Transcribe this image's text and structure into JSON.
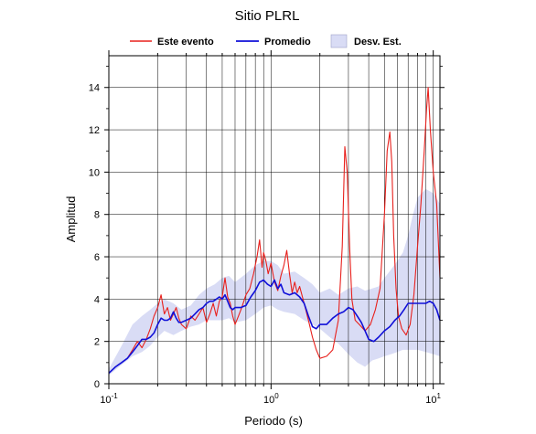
{
  "chart_data": {
    "type": "line",
    "title": "Sitio PLRL",
    "xlabel": "Periodo (s)",
    "ylabel": "Amplitud",
    "x_scale": "log",
    "xlim": [
      0.1,
      11
    ],
    "ylim": [
      0,
      15.5
    ],
    "grid": true,
    "legend_position": "top",
    "x_ticks": [
      {
        "value": 0.1,
        "base": "10",
        "exp": "-1"
      },
      {
        "value": 1,
        "base": "10",
        "exp": "0"
      },
      {
        "value": 10,
        "base": "10",
        "exp": "1"
      }
    ],
    "y_ticks": [
      0,
      2,
      4,
      6,
      8,
      10,
      12,
      14
    ],
    "legend": [
      {
        "label": "Este evento",
        "color": "#e8201c",
        "kind": "line"
      },
      {
        "label": "Promedio",
        "color": "#1010d8",
        "kind": "line"
      },
      {
        "label": "Desv. Est.",
        "color": "#d9dcf5",
        "kind": "band"
      }
    ],
    "band": {
      "name": "Desv. Est.",
      "color": "#d9dcf5",
      "x": [
        0.1,
        0.12,
        0.14,
        0.16,
        0.18,
        0.2,
        0.22,
        0.25,
        0.28,
        0.32,
        0.36,
        0.4,
        0.45,
        0.5,
        0.55,
        0.6,
        0.7,
        0.8,
        0.9,
        1.0,
        1.1,
        1.2,
        1.4,
        1.6,
        1.8,
        2.0,
        2.3,
        2.6,
        3.0,
        3.4,
        3.8,
        4.2,
        4.6,
        5.0,
        5.5,
        6.0,
        6.5,
        7.0,
        7.5,
        8.0,
        9.0,
        10.0,
        11.0
      ],
      "upper": [
        0.7,
        1.8,
        2.8,
        3.2,
        3.5,
        3.8,
        4.0,
        3.8,
        3.5,
        3.7,
        4.2,
        4.5,
        4.7,
        5.0,
        5.1,
        4.8,
        5.2,
        5.6,
        5.8,
        5.8,
        5.6,
        5.2,
        5.3,
        5.0,
        4.7,
        4.3,
        4.5,
        4.2,
        4.5,
        4.6,
        4.4,
        4.5,
        4.6,
        5.0,
        5.4,
        5.8,
        6.2,
        7.0,
        8.0,
        8.8,
        9.2,
        9.0,
        8.5
      ],
      "lower": [
        0.4,
        0.9,
        1.3,
        1.5,
        1.8,
        2.2,
        2.5,
        2.3,
        2.5,
        2.7,
        2.8,
        3.0,
        3.0,
        3.0,
        3.1,
        2.9,
        3.0,
        3.3,
        3.6,
        3.7,
        3.5,
        3.4,
        3.3,
        3.0,
        2.8,
        2.6,
        2.2,
        1.9,
        1.4,
        1.0,
        0.8,
        1.1,
        1.2,
        1.3,
        1.4,
        1.5,
        1.6,
        1.6,
        1.6,
        1.6,
        1.5,
        1.4,
        1.3
      ]
    },
    "series": [
      {
        "name": "Este evento",
        "color": "#e8201c",
        "x": [
          0.1,
          0.11,
          0.12,
          0.13,
          0.14,
          0.15,
          0.16,
          0.17,
          0.18,
          0.19,
          0.2,
          0.21,
          0.22,
          0.23,
          0.24,
          0.25,
          0.26,
          0.27,
          0.28,
          0.3,
          0.32,
          0.34,
          0.36,
          0.38,
          0.4,
          0.42,
          0.44,
          0.46,
          0.48,
          0.5,
          0.52,
          0.54,
          0.56,
          0.58,
          0.6,
          0.63,
          0.66,
          0.7,
          0.74,
          0.78,
          0.82,
          0.85,
          0.88,
          0.9,
          0.93,
          0.96,
          1.0,
          1.05,
          1.1,
          1.15,
          1.2,
          1.25,
          1.3,
          1.35,
          1.4,
          1.45,
          1.5,
          1.6,
          1.7,
          1.8,
          1.9,
          2.0,
          2.2,
          2.4,
          2.6,
          2.75,
          2.85,
          2.95,
          3.05,
          3.15,
          3.3,
          3.5,
          3.8,
          4.1,
          4.4,
          4.7,
          5.0,
          5.2,
          5.4,
          5.55,
          5.7,
          5.9,
          6.1,
          6.4,
          6.8,
          7.2,
          7.6,
          8.0,
          8.4,
          8.8,
          9.1,
          9.3,
          9.6,
          10.0,
          10.5,
          11.0
        ],
        "y": [
          0.5,
          0.8,
          1.0,
          1.2,
          1.6,
          2.0,
          1.7,
          2.1,
          2.6,
          3.2,
          3.6,
          4.2,
          3.3,
          3.6,
          3.0,
          3.3,
          3.6,
          3.1,
          2.8,
          2.6,
          3.2,
          3.0,
          3.3,
          3.6,
          2.9,
          3.3,
          3.8,
          3.2,
          3.9,
          4.1,
          5.0,
          4.1,
          3.8,
          3.2,
          2.8,
          3.2,
          3.6,
          4.2,
          4.5,
          5.2,
          6.0,
          6.8,
          5.5,
          6.2,
          5.8,
          5.2,
          5.7,
          4.8,
          4.4,
          5.1,
          5.6,
          6.3,
          5.2,
          4.3,
          4.8,
          4.3,
          4.6,
          3.8,
          3.0,
          2.2,
          1.6,
          1.2,
          1.3,
          1.6,
          3.0,
          6.5,
          11.2,
          10.0,
          6.5,
          4.0,
          3.0,
          2.8,
          2.5,
          2.8,
          3.5,
          4.5,
          8.0,
          11.0,
          11.9,
          10.5,
          7.0,
          4.5,
          3.2,
          2.6,
          2.3,
          2.8,
          4.2,
          6.5,
          8.5,
          11.0,
          13.0,
          14.0,
          12.0,
          10.0,
          8.5,
          5.0
        ]
      },
      {
        "name": "Promedio",
        "color": "#1010d8",
        "x": [
          0.1,
          0.11,
          0.12,
          0.13,
          0.14,
          0.15,
          0.16,
          0.17,
          0.18,
          0.19,
          0.2,
          0.21,
          0.22,
          0.23,
          0.24,
          0.25,
          0.26,
          0.27,
          0.28,
          0.3,
          0.32,
          0.34,
          0.36,
          0.38,
          0.4,
          0.42,
          0.44,
          0.46,
          0.48,
          0.5,
          0.52,
          0.54,
          0.56,
          0.58,
          0.6,
          0.65,
          0.7,
          0.75,
          0.8,
          0.85,
          0.9,
          0.95,
          1.0,
          1.05,
          1.1,
          1.15,
          1.2,
          1.3,
          1.4,
          1.5,
          1.6,
          1.7,
          1.8,
          1.9,
          2.0,
          2.2,
          2.4,
          2.6,
          2.8,
          3.0,
          3.2,
          3.4,
          3.6,
          3.8,
          4.0,
          4.3,
          4.6,
          5.0,
          5.4,
          5.8,
          6.2,
          6.6,
          7.0,
          7.5,
          8.0,
          8.5,
          9.0,
          9.5,
          10.0,
          10.5,
          11.0
        ],
        "y": [
          0.5,
          0.8,
          1.0,
          1.2,
          1.5,
          1.8,
          2.1,
          2.1,
          2.2,
          2.4,
          2.8,
          3.1,
          3.0,
          3.0,
          3.1,
          3.4,
          3.1,
          2.9,
          2.9,
          3.0,
          3.1,
          3.3,
          3.5,
          3.6,
          3.8,
          3.9,
          3.9,
          4.0,
          4.1,
          4.0,
          4.2,
          3.9,
          3.6,
          3.5,
          3.6,
          3.6,
          3.7,
          4.1,
          4.4,
          4.8,
          4.9,
          4.7,
          4.6,
          4.9,
          4.5,
          4.7,
          4.3,
          4.2,
          4.3,
          4.1,
          3.8,
          3.2,
          2.7,
          2.6,
          2.8,
          2.8,
          3.1,
          3.3,
          3.4,
          3.6,
          3.5,
          3.2,
          2.9,
          2.5,
          2.1,
          2.0,
          2.2,
          2.5,
          2.7,
          3.0,
          3.2,
          3.5,
          3.8,
          3.8,
          3.8,
          3.8,
          3.8,
          3.9,
          3.8,
          3.5,
          3.0
        ]
      }
    ]
  }
}
